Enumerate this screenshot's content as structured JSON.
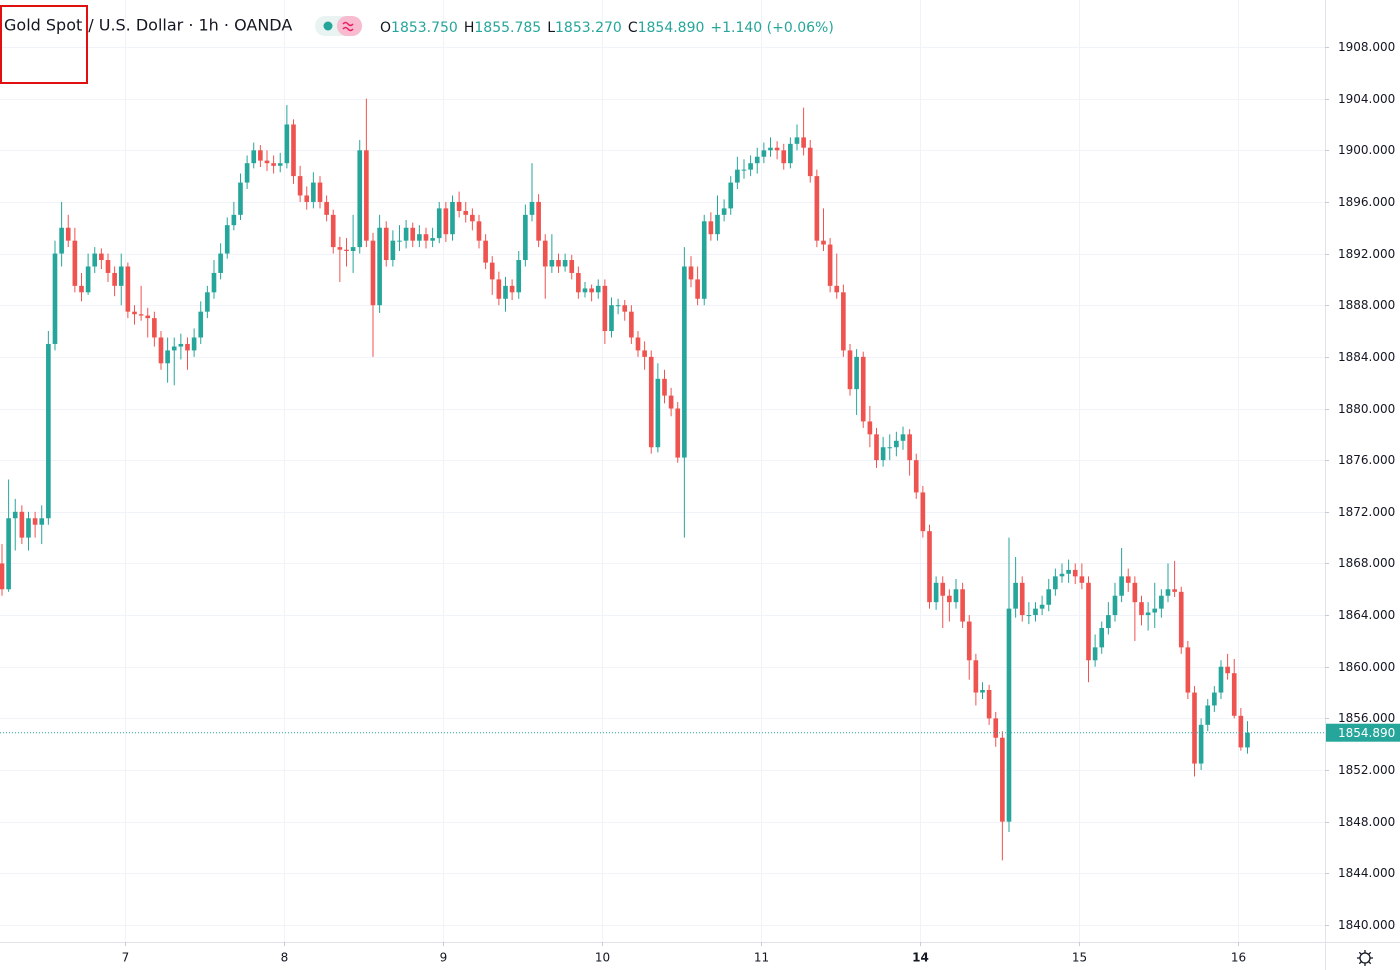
{
  "chart_data": {
    "type": "candlestick",
    "title": "Gold Spot",
    "symbol_detail": "/ U.S. Dollar · 1h · OANDA",
    "ohlc_legend": [
      {
        "label": "O",
        "value": "1853.750"
      },
      {
        "label": "H",
        "value": "1855.785"
      },
      {
        "label": "L",
        "value": "1853.270"
      },
      {
        "label": "C",
        "value": "1854.890"
      }
    ],
    "change": "+1.140 (+0.06%)",
    "up_color": "#26a69a",
    "down_color": "#ef5350",
    "grid": true,
    "last_price": {
      "value": 1854.89,
      "label": "1854.890"
    },
    "xlim": [
      -0.3,
      199.7
    ],
    "xticks": [
      {
        "value": 18.57,
        "label": "7"
      },
      {
        "value": 42.57,
        "label": "8"
      },
      {
        "value": 66.57,
        "label": "9"
      },
      {
        "value": 90.57,
        "label": "10"
      },
      {
        "value": 114.57,
        "label": "11"
      },
      {
        "value": 138.57,
        "label": "14"
      },
      {
        "value": 162.57,
        "label": "15"
      },
      {
        "value": 186.57,
        "label": "16"
      }
    ],
    "ylim": [
      1838.68,
      1911.64
    ],
    "yticks": [
      {
        "value": 1840,
        "label": "1840.000"
      },
      {
        "value": 1844,
        "label": "1844.000"
      },
      {
        "value": 1848,
        "label": "1848.000"
      },
      {
        "value": 1852,
        "label": "1852.000"
      },
      {
        "value": 1856,
        "label": "1856.000"
      },
      {
        "value": 1860,
        "label": "1860.000"
      },
      {
        "value": 1864,
        "label": "1864.000"
      },
      {
        "value": 1868,
        "label": "1868.000"
      },
      {
        "value": 1872,
        "label": "1872.000"
      },
      {
        "value": 1876,
        "label": "1876.000"
      },
      {
        "value": 1880,
        "label": "1880.000"
      },
      {
        "value": 1884,
        "label": "1884.000"
      },
      {
        "value": 1888,
        "label": "1888.000"
      },
      {
        "value": 1892,
        "label": "1892.000"
      },
      {
        "value": 1896,
        "label": "1896.000"
      },
      {
        "value": 1900,
        "label": "1900.000"
      },
      {
        "value": 1904,
        "label": "1904.000"
      },
      {
        "value": 1908,
        "label": "1908.000"
      }
    ],
    "ohlc": [
      [
        1868,
        1869.5,
        1865.5,
        1866
      ],
      [
        1866,
        1874.5,
        1865.8,
        1871.5
      ],
      [
        1871.5,
        1873,
        1869,
        1872
      ],
      [
        1872,
        1872.5,
        1869.5,
        1870
      ],
      [
        1870,
        1872,
        1869,
        1871.5
      ],
      [
        1871.5,
        1872,
        1870,
        1871
      ],
      [
        1871,
        1872.5,
        1869.5,
        1871.5
      ],
      [
        1871.5,
        1886,
        1871,
        1885
      ],
      [
        1885,
        1893,
        1884.5,
        1892
      ],
      [
        1892,
        1896,
        1891,
        1894
      ],
      [
        1894,
        1895,
        1892.5,
        1893
      ],
      [
        1893,
        1894,
        1889,
        1889.5
      ],
      [
        1889.5,
        1890.5,
        1888.3,
        1889
      ],
      [
        1889,
        1892,
        1888.8,
        1891
      ],
      [
        1891,
        1892.5,
        1890.5,
        1892
      ],
      [
        1892,
        1892.4,
        1890.8,
        1891.5
      ],
      [
        1891.5,
        1892,
        1889.8,
        1890.5
      ],
      [
        1890.5,
        1891,
        1888.7,
        1889.5
      ],
      [
        1889.5,
        1892,
        1888,
        1891
      ],
      [
        1891,
        1891.3,
        1887,
        1887.5
      ],
      [
        1887.5,
        1888,
        1886.5,
        1887.3
      ],
      [
        1887.3,
        1889.5,
        1886.8,
        1887.2
      ],
      [
        1887.2,
        1887.8,
        1885.5,
        1887
      ],
      [
        1887,
        1887.5,
        1884.8,
        1885.5
      ],
      [
        1885.5,
        1886,
        1883,
        1883.5
      ],
      [
        1883.5,
        1885.5,
        1882,
        1884.5
      ],
      [
        1884.5,
        1885.5,
        1881.8,
        1884.8
      ],
      [
        1884.8,
        1885.8,
        1883.8,
        1885
      ],
      [
        1885,
        1885.5,
        1883,
        1884.5
      ],
      [
        1884.5,
        1886.2,
        1884,
        1885.5
      ],
      [
        1885.5,
        1888.3,
        1885,
        1887.5
      ],
      [
        1887.5,
        1889.5,
        1887,
        1889
      ],
      [
        1889,
        1891.5,
        1888.5,
        1890.5
      ],
      [
        1890.5,
        1892.8,
        1890,
        1892
      ],
      [
        1892,
        1894.8,
        1891.6,
        1894.2
      ],
      [
        1894.2,
        1896,
        1893.8,
        1895
      ],
      [
        1895,
        1898.2,
        1894.6,
        1897.5
      ],
      [
        1897.5,
        1899.6,
        1897,
        1899
      ],
      [
        1899,
        1900.6,
        1898.6,
        1900
      ],
      [
        1900,
        1900.4,
        1898.7,
        1899.2
      ],
      [
        1899.2,
        1900,
        1898.4,
        1899
      ],
      [
        1899,
        1899.6,
        1898.2,
        1898.8
      ],
      [
        1898.8,
        1899.8,
        1898.3,
        1899
      ],
      [
        1899,
        1903.5,
        1898.6,
        1902
      ],
      [
        1902,
        1902.4,
        1897.4,
        1898
      ],
      [
        1898,
        1898.8,
        1896,
        1896.5
      ],
      [
        1896.5,
        1897.2,
        1895.4,
        1896
      ],
      [
        1896,
        1898.3,
        1895.5,
        1897.5
      ],
      [
        1897.5,
        1898,
        1895.5,
        1896
      ],
      [
        1896,
        1896.5,
        1894.5,
        1895
      ],
      [
        1895,
        1895.4,
        1892,
        1892.5
      ],
      [
        1892.5,
        1893.3,
        1889.8,
        1892.3
      ],
      [
        1892.3,
        1893.2,
        1891,
        1892.2
      ],
      [
        1892.2,
        1895,
        1890.5,
        1892.5
      ],
      [
        1892.5,
        1900.8,
        1892,
        1900
      ],
      [
        1900,
        1904,
        1892.5,
        1893
      ],
      [
        1893,
        1893.6,
        1884,
        1888
      ],
      [
        1888,
        1895,
        1887.4,
        1894
      ],
      [
        1894,
        1894.5,
        1891,
        1891.5
      ],
      [
        1891.5,
        1893.8,
        1891,
        1893
      ],
      [
        1893,
        1894.2,
        1892.2,
        1893
      ],
      [
        1893,
        1894.6,
        1892.4,
        1894
      ],
      [
        1894,
        1894.4,
        1892.5,
        1893
      ],
      [
        1893,
        1894.2,
        1892.5,
        1893.5
      ],
      [
        1893.5,
        1894,
        1892.4,
        1893
      ],
      [
        1893,
        1894,
        1892.5,
        1893.2
      ],
      [
        1893.2,
        1896,
        1892.8,
        1895.5
      ],
      [
        1895.5,
        1896,
        1892.9,
        1893.5
      ],
      [
        1893.5,
        1896.5,
        1893,
        1896
      ],
      [
        1896,
        1896.8,
        1894.8,
        1895.3
      ],
      [
        1895.3,
        1896,
        1894.4,
        1895
      ],
      [
        1895,
        1895.5,
        1893.8,
        1894.5
      ],
      [
        1894.5,
        1895,
        1892.4,
        1893
      ],
      [
        1893,
        1893.5,
        1890.8,
        1891.3
      ],
      [
        1891.3,
        1891.8,
        1888.8,
        1890
      ],
      [
        1890,
        1890.6,
        1888,
        1888.5
      ],
      [
        1888.5,
        1890.2,
        1887.5,
        1889.5
      ],
      [
        1889.5,
        1890,
        1888.4,
        1889
      ],
      [
        1889,
        1892.2,
        1888.5,
        1891.5
      ],
      [
        1891.5,
        1895.8,
        1891,
        1895
      ],
      [
        1895,
        1899,
        1894.5,
        1896
      ],
      [
        1896,
        1896.6,
        1892.5,
        1893
      ],
      [
        1893,
        1893.5,
        1888.5,
        1891
      ],
      [
        1891,
        1893.5,
        1890.5,
        1891.5
      ],
      [
        1891.5,
        1892,
        1890.5,
        1891
      ],
      [
        1891,
        1892,
        1890.6,
        1891.5
      ],
      [
        1891.5,
        1891.9,
        1890,
        1890.5
      ],
      [
        1890.5,
        1891,
        1888.5,
        1889
      ],
      [
        1889,
        1889.8,
        1888.6,
        1889.3
      ],
      [
        1889.3,
        1889.6,
        1888.3,
        1889
      ],
      [
        1889,
        1890,
        1888.5,
        1889.5
      ],
      [
        1889.5,
        1890,
        1885,
        1886
      ],
      [
        1886,
        1888.6,
        1885.5,
        1888
      ],
      [
        1888,
        1888.5,
        1887.3,
        1888
      ],
      [
        1888,
        1888.4,
        1886.8,
        1887.5
      ],
      [
        1887.5,
        1888,
        1885,
        1885.5
      ],
      [
        1885.5,
        1886,
        1884,
        1884.5
      ],
      [
        1884.5,
        1885.2,
        1883,
        1884
      ],
      [
        1884,
        1884.5,
        1876.5,
        1877
      ],
      [
        1877,
        1883.5,
        1876.6,
        1882.3
      ],
      [
        1882.3,
        1883,
        1880.4,
        1881
      ],
      [
        1881,
        1881.6,
        1879.4,
        1880
      ],
      [
        1880,
        1880.5,
        1875.8,
        1876.2
      ],
      [
        1876.2,
        1892.5,
        1870,
        1891
      ],
      [
        1891,
        1891.8,
        1889.4,
        1890
      ],
      [
        1890,
        1891,
        1888,
        1888.5
      ],
      [
        1888.5,
        1895,
        1888,
        1894.5
      ],
      [
        1894.5,
        1895.2,
        1893,
        1893.5
      ],
      [
        1893.5,
        1896.5,
        1893,
        1895
      ],
      [
        1895,
        1896.2,
        1894.5,
        1895.5
      ],
      [
        1895.5,
        1898,
        1895,
        1897.5
      ],
      [
        1897.5,
        1899.5,
        1897,
        1898.5
      ],
      [
        1898.5,
        1899.3,
        1897.8,
        1898.5
      ],
      [
        1898.5,
        1899.6,
        1898,
        1899
      ],
      [
        1899,
        1900.2,
        1898.2,
        1899.5
      ],
      [
        1899.5,
        1900.6,
        1899,
        1900
      ],
      [
        1900,
        1901,
        1899.5,
        1900.2
      ],
      [
        1900.2,
        1900.7,
        1899.3,
        1900
      ],
      [
        1900,
        1900.5,
        1898.5,
        1899
      ],
      [
        1899,
        1901,
        1898.6,
        1900.5
      ],
      [
        1900.5,
        1902,
        1900,
        1901
      ],
      [
        1901,
        1903.3,
        1899.6,
        1900.2
      ],
      [
        1900.2,
        1900.8,
        1897.5,
        1898
      ],
      [
        1898,
        1898.5,
        1892.5,
        1893
      ],
      [
        1893,
        1895.5,
        1892.2,
        1892.7
      ],
      [
        1892.7,
        1893.2,
        1889,
        1889.5
      ],
      [
        1889.5,
        1892,
        1888.5,
        1889
      ],
      [
        1889,
        1889.6,
        1884,
        1884.5
      ],
      [
        1884.5,
        1885,
        1881,
        1881.5
      ],
      [
        1881.5,
        1884.6,
        1879.5,
        1884
      ],
      [
        1884,
        1884.4,
        1878.5,
        1879
      ],
      [
        1879,
        1880.2,
        1877,
        1878
      ],
      [
        1878,
        1878.5,
        1875.4,
        1876
      ],
      [
        1876,
        1877.8,
        1875.5,
        1877
      ],
      [
        1877,
        1878,
        1876,
        1877
      ],
      [
        1877,
        1878.2,
        1876.3,
        1877.5
      ],
      [
        1877.5,
        1878.6,
        1876.8,
        1878
      ],
      [
        1878,
        1878.4,
        1874.8,
        1876
      ],
      [
        1876,
        1876.5,
        1873,
        1873.5
      ],
      [
        1873.5,
        1874,
        1870,
        1870.5
      ],
      [
        1870.5,
        1871,
        1864.5,
        1865
      ],
      [
        1865,
        1867,
        1864.4,
        1866.5
      ],
      [
        1866.5,
        1867,
        1863,
        1865.5
      ],
      [
        1865.5,
        1866,
        1863.5,
        1865
      ],
      [
        1865,
        1866.8,
        1864.5,
        1866
      ],
      [
        1866,
        1866.5,
        1863,
        1863.5
      ],
      [
        1863.5,
        1864,
        1859,
        1860.5
      ],
      [
        1860.5,
        1861,
        1857,
        1858
      ],
      [
        1858,
        1858.8,
        1857.5,
        1858.2
      ],
      [
        1858.2,
        1858.6,
        1855.5,
        1856
      ],
      [
        1856,
        1856.5,
        1853.8,
        1854.5
      ],
      [
        1854.5,
        1855,
        1845,
        1848
      ],
      [
        1848,
        1870,
        1847.2,
        1864.5
      ],
      [
        1864.5,
        1868.5,
        1863.8,
        1866.5
      ],
      [
        1866.5,
        1867,
        1863.5,
        1864
      ],
      [
        1864,
        1865,
        1863.3,
        1864
      ],
      [
        1864,
        1865,
        1863.5,
        1864.5
      ],
      [
        1864.5,
        1865.5,
        1864,
        1864.8
      ],
      [
        1864.8,
        1866.8,
        1864.3,
        1866
      ],
      [
        1866,
        1867.6,
        1865.5,
        1867
      ],
      [
        1867,
        1868,
        1866.5,
        1867.2
      ],
      [
        1867.2,
        1868.3,
        1866.5,
        1867.5
      ],
      [
        1867.5,
        1868,
        1866.4,
        1867
      ],
      [
        1867,
        1868,
        1866,
        1866.5
      ],
      [
        1866.5,
        1867,
        1858.8,
        1860.5
      ],
      [
        1860.5,
        1862.5,
        1860,
        1861.5
      ],
      [
        1861.5,
        1863.5,
        1861,
        1863
      ],
      [
        1863,
        1865,
        1862.5,
        1864
      ],
      [
        1864,
        1866.5,
        1863.5,
        1865.5
      ],
      [
        1865.5,
        1869.2,
        1865,
        1867
      ],
      [
        1867,
        1867.6,
        1865.8,
        1866.5
      ],
      [
        1866.5,
        1867,
        1862,
        1865
      ],
      [
        1865,
        1865.5,
        1863.2,
        1864
      ],
      [
        1864,
        1865,
        1862.8,
        1864.2
      ],
      [
        1864.2,
        1866.5,
        1863,
        1864.5
      ],
      [
        1864.5,
        1866,
        1863.8,
        1865.5
      ],
      [
        1865.5,
        1868,
        1865,
        1866
      ],
      [
        1866,
        1868.2,
        1865.4,
        1865.8
      ],
      [
        1865.8,
        1866.2,
        1861,
        1861.5
      ],
      [
        1861.5,
        1862,
        1857.5,
        1858
      ],
      [
        1858,
        1858.5,
        1851.5,
        1852.5
      ],
      [
        1852.5,
        1856,
        1852,
        1855.5
      ],
      [
        1855.5,
        1857.5,
        1855,
        1857
      ],
      [
        1857,
        1858.5,
        1856.5,
        1858
      ],
      [
        1858,
        1860.5,
        1857.5,
        1860
      ],
      [
        1860,
        1861,
        1859,
        1859.5
      ],
      [
        1859.5,
        1860.6,
        1856,
        1856.2
      ],
      [
        1856.2,
        1856.8,
        1853.5,
        1853.75
      ],
      [
        1853.75,
        1855.785,
        1853.27,
        1854.89
      ]
    ]
  }
}
